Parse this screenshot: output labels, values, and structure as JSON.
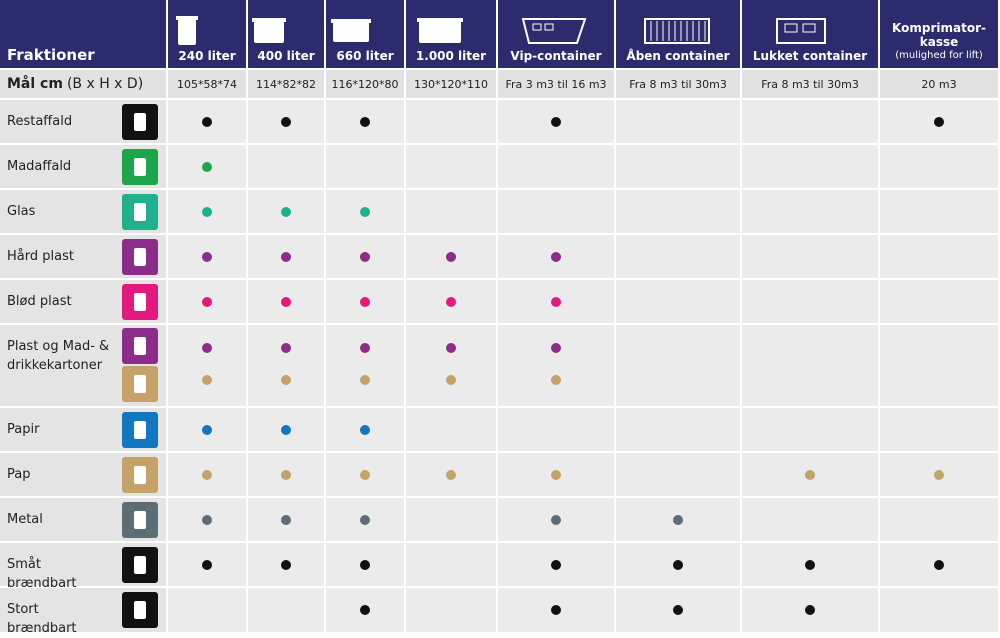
{
  "header": {
    "title": "Fraktioner",
    "columns": [
      {
        "label": "240 liter"
      },
      {
        "label": "400 liter"
      },
      {
        "label": "660 liter"
      },
      {
        "label": "1.000 liter"
      },
      {
        "label": "Vip-container"
      },
      {
        "label": "Åben container"
      },
      {
        "label": "Lukket container"
      },
      {
        "label": "Komprimator-kasse",
        "note": "(mulighed for lift)"
      }
    ]
  },
  "dimensions": {
    "label": "Mål cm",
    "unit": "(B x H x D)",
    "values": [
      "105*58*74",
      "114*82*82",
      "116*120*80",
      "130*120*110",
      "Fra 3 m3 til 16 m3",
      "Fra 8 m3 til 30m3",
      "Fra 8 m3 til 30m3",
      "20 m3"
    ]
  },
  "rows": [
    {
      "label": "Restaffald",
      "groups": [
        {
          "color": "#111111",
          "dots": [
            true,
            true,
            true,
            false,
            true,
            false,
            false,
            true
          ]
        }
      ]
    },
    {
      "label": "Madaffald",
      "groups": [
        {
          "color": "#1ea54c",
          "dots": [
            true,
            false,
            false,
            false,
            false,
            false,
            false,
            false
          ]
        }
      ]
    },
    {
      "label": "Glas",
      "groups": [
        {
          "color": "#20b08c",
          "dots": [
            true,
            true,
            true,
            false,
            false,
            false,
            false,
            false
          ]
        }
      ]
    },
    {
      "label": "Hård plast",
      "groups": [
        {
          "color": "#8c2d89",
          "dots": [
            true,
            true,
            true,
            true,
            true,
            false,
            false,
            false
          ]
        }
      ]
    },
    {
      "label": "Blød plast",
      "groups": [
        {
          "color": "#e3197f",
          "dots": [
            true,
            true,
            true,
            true,
            true,
            false,
            false,
            false
          ]
        }
      ]
    },
    {
      "label": "Plast og Mad- & drikkekartoner",
      "groups": [
        {
          "color": "#8c2d89",
          "dots": [
            true,
            true,
            true,
            true,
            true,
            false,
            false,
            false
          ]
        },
        {
          "color": "#c4a268",
          "dots": [
            true,
            true,
            true,
            true,
            true,
            false,
            false,
            false
          ]
        }
      ]
    },
    {
      "label": "Papir",
      "groups": [
        {
          "color": "#1276c0",
          "dots": [
            true,
            true,
            true,
            false,
            false,
            false,
            false,
            false
          ]
        }
      ]
    },
    {
      "label": "Pap",
      "groups": [
        {
          "color": "#c4a268",
          "dots": [
            true,
            true,
            true,
            true,
            true,
            false,
            true,
            true
          ]
        }
      ]
    },
    {
      "label": "Metal",
      "groups": [
        {
          "color": "#5d6d76",
          "dots": [
            true,
            true,
            true,
            false,
            true,
            true,
            false,
            false
          ]
        }
      ]
    },
    {
      "label": "Småt brændbart",
      "groups": [
        {
          "color": "#111111",
          "dots": [
            true,
            true,
            true,
            false,
            true,
            true,
            true,
            true
          ]
        }
      ]
    },
    {
      "label": "Stort brændbart",
      "groups": [
        {
          "color": "#111111",
          "dots": [
            false,
            false,
            true,
            false,
            true,
            true,
            true,
            false
          ]
        }
      ]
    }
  ]
}
